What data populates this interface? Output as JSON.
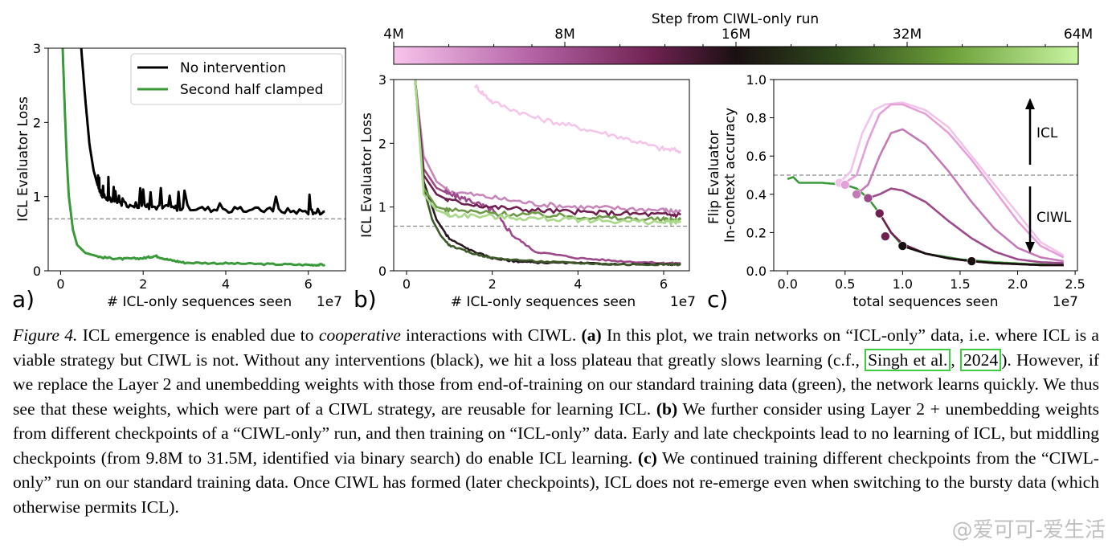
{
  "colorbar": {
    "title": "Step from CIWL-only run",
    "ticks": [
      "4M",
      "8M",
      "16M",
      "32M",
      "64M"
    ],
    "colors": [
      "#f7c4ec",
      "#b564a6",
      "#6e2150",
      "#1a1012",
      "#2f4a1c",
      "#6fa23c",
      "#c8f5a2"
    ]
  },
  "chart_data": [
    {
      "panel_label": "a)",
      "type": "line",
      "xlabel": "# ICL-only sequences seen",
      "x_exponent": "1e7",
      "ylabel": "ICL Evaluator Loss",
      "xlim": [
        -0.3,
        6.9
      ],
      "ylim": [
        0,
        3
      ],
      "xticks": [
        "0",
        "2",
        "4",
        "6"
      ],
      "yticks": [
        "0",
        "1",
        "2",
        "3"
      ],
      "hline": 0.7,
      "legend_position": "upper-right",
      "series": [
        {
          "name": "No intervention",
          "color": "#000000",
          "x": [
            0.5,
            0.6,
            0.7,
            0.8,
            0.9,
            1.0,
            1.2,
            1.5,
            2.0,
            2.5,
            3.0,
            4.0,
            5.0,
            6.0,
            6.4
          ],
          "y": [
            3.0,
            2.3,
            1.7,
            1.35,
            1.15,
            1.02,
            0.95,
            0.9,
            0.88,
            0.85,
            0.85,
            0.82,
            0.82,
            0.8,
            0.8
          ]
        },
        {
          "name": "Second half clamped",
          "color": "#3a9a3a",
          "x": [
            0.05,
            0.1,
            0.15,
            0.2,
            0.3,
            0.4,
            0.6,
            1.0,
            1.5,
            2.0,
            2.3,
            2.6,
            3.0,
            4.0,
            5.0,
            6.0,
            6.4
          ],
          "y": [
            3.0,
            2.2,
            1.5,
            1.0,
            0.55,
            0.35,
            0.24,
            0.18,
            0.16,
            0.17,
            0.2,
            0.15,
            0.11,
            0.1,
            0.09,
            0.08,
            0.08
          ]
        }
      ]
    },
    {
      "panel_label": "b)",
      "type": "line",
      "xlabel": "# ICL-only sequences seen",
      "x_exponent": "1e7",
      "ylabel": "ICL Evaluator Loss",
      "xlim": [
        -0.3,
        6.6
      ],
      "ylim": [
        0,
        3
      ],
      "xticks": [
        "0",
        "2",
        "4",
        "6"
      ],
      "yticks": [
        "0",
        "1",
        "2",
        "3"
      ],
      "hline": 0.7,
      "series": [
        {
          "color": "#f4c6ea",
          "x": [
            1.6,
            2.0,
            3.0,
            4.0,
            5.0,
            5.9,
            6.4
          ],
          "y": [
            2.9,
            2.65,
            2.4,
            2.25,
            2.1,
            1.92,
            1.88
          ]
        },
        {
          "color": "#c686ba",
          "x": [
            0.2,
            0.4,
            0.7,
            1.0,
            2.0,
            3.0,
            4.0,
            5.0,
            6.0,
            6.4
          ],
          "y": [
            3.0,
            1.8,
            1.4,
            1.25,
            1.15,
            1.05,
            1.0,
            0.98,
            0.95,
            0.93
          ]
        },
        {
          "color": "#9c4a8a",
          "x": [
            0.2,
            0.4,
            0.7,
            1.0,
            1.5,
            2.0,
            2.5,
            3.0,
            4.0,
            5.0,
            6.0,
            6.4
          ],
          "y": [
            3.0,
            1.6,
            1.3,
            1.2,
            1.1,
            0.95,
            0.55,
            0.3,
            0.2,
            0.15,
            0.12,
            0.12
          ]
        },
        {
          "color": "#6e2150",
          "x": [
            0.2,
            0.4,
            0.7,
            1.0,
            2.0,
            3.0,
            4.0,
            5.0,
            6.0,
            6.4
          ],
          "y": [
            3.0,
            1.5,
            1.2,
            1.1,
            1.0,
            0.95,
            0.92,
            0.9,
            0.88,
            0.88
          ]
        },
        {
          "color": "#2a1a22",
          "x": [
            0.2,
            0.4,
            0.7,
            1.0,
            1.5,
            2.0,
            2.5,
            3.0,
            4.0,
            5.0,
            6.0,
            6.4
          ],
          "y": [
            3.0,
            1.4,
            0.8,
            0.5,
            0.32,
            0.2,
            0.15,
            0.13,
            0.12,
            0.1,
            0.1,
            0.1
          ]
        },
        {
          "color": "#3e5a2a",
          "x": [
            0.2,
            0.4,
            0.6,
            0.8,
            1.0,
            1.5,
            2.0,
            3.0,
            4.0,
            5.0,
            6.0,
            6.4
          ],
          "y": [
            3.0,
            1.3,
            0.8,
            0.55,
            0.4,
            0.28,
            0.2,
            0.15,
            0.12,
            0.1,
            0.1,
            0.1
          ]
        },
        {
          "color": "#6e9a4a",
          "x": [
            0.2,
            0.4,
            0.7,
            1.0,
            2.0,
            3.0,
            4.0,
            5.0,
            6.0,
            6.4
          ],
          "y": [
            3.0,
            1.3,
            1.0,
            0.95,
            0.9,
            0.88,
            0.85,
            0.82,
            0.8,
            0.8
          ]
        },
        {
          "color": "#a8d888",
          "x": [
            0.2,
            0.4,
            0.7,
            1.0,
            2.0,
            3.0,
            4.0,
            5.0,
            6.0,
            6.4
          ],
          "y": [
            3.0,
            1.2,
            0.95,
            0.88,
            0.85,
            0.82,
            0.8,
            0.78,
            0.76,
            0.76
          ]
        }
      ]
    },
    {
      "panel_label": "c)",
      "type": "line",
      "xlabel": "total sequences seen",
      "x_exponent": "1e7",
      "ylabel": "Flip Evaluator In-context accuracy",
      "xlim": [
        -0.12,
        2.52
      ],
      "ylim": [
        0,
        1
      ],
      "xticks": [
        "0.0",
        "0.5",
        "1.0",
        "1.5",
        "2.0",
        "2.5"
      ],
      "yticks": [
        "0.0",
        "0.2",
        "0.4",
        "0.6",
        "0.8",
        "1.0"
      ],
      "hline": 0.5,
      "annotations": [
        "ICL",
        "CIWL"
      ],
      "series": [
        {
          "color": "#3a9a3a",
          "x": [
            0.0,
            0.05,
            0.1,
            0.3,
            0.5,
            0.6,
            0.7,
            0.8,
            0.9,
            1.0,
            1.2,
            1.5,
            1.8,
            2.1,
            2.4
          ],
          "y": [
            0.48,
            0.49,
            0.46,
            0.46,
            0.45,
            0.43,
            0.38,
            0.3,
            0.2,
            0.13,
            0.09,
            0.06,
            0.045,
            0.035,
            0.03
          ]
        },
        {
          "color": "#f3c4ea",
          "x": [
            0.45,
            0.55,
            0.65,
            0.75,
            0.85,
            1.0,
            1.2,
            1.4,
            1.6,
            1.8,
            2.0,
            2.2,
            2.4
          ],
          "y": [
            0.46,
            0.52,
            0.72,
            0.84,
            0.87,
            0.88,
            0.84,
            0.75,
            0.6,
            0.45,
            0.3,
            0.15,
            0.08
          ]
        },
        {
          "color": "#e6a0d8",
          "x": [
            0.5,
            0.6,
            0.7,
            0.8,
            0.9,
            1.0,
            1.2,
            1.4,
            1.6,
            1.8,
            2.0,
            2.2,
            2.4
          ],
          "y": [
            0.46,
            0.5,
            0.68,
            0.82,
            0.87,
            0.87,
            0.82,
            0.72,
            0.58,
            0.42,
            0.26,
            0.13,
            0.07
          ]
        },
        {
          "color": "#c47ab6",
          "x": [
            0.6,
            0.7,
            0.8,
            0.9,
            1.0,
            1.2,
            1.4,
            1.6,
            1.8,
            2.0,
            2.2,
            2.4
          ],
          "y": [
            0.4,
            0.45,
            0.6,
            0.72,
            0.74,
            0.66,
            0.52,
            0.36,
            0.22,
            0.12,
            0.07,
            0.05
          ]
        },
        {
          "color": "#9c4a8a",
          "x": [
            0.7,
            0.8,
            0.9,
            1.0,
            1.2,
            1.4,
            1.6,
            1.8,
            2.0,
            2.2,
            2.4
          ],
          "y": [
            0.38,
            0.4,
            0.43,
            0.42,
            0.36,
            0.26,
            0.17,
            0.1,
            0.06,
            0.045,
            0.04
          ]
        },
        {
          "color": "#6e2150",
          "x": [
            0.8,
            0.9,
            1.0,
            1.2,
            1.4,
            1.6,
            1.8,
            2.0,
            2.2,
            2.4
          ],
          "y": [
            0.3,
            0.2,
            0.14,
            0.09,
            0.065,
            0.05,
            0.04,
            0.035,
            0.03,
            0.03
          ]
        },
        {
          "color": "#1a1012",
          "x": [
            1.0,
            1.2,
            1.4,
            1.6,
            1.8,
            2.0,
            2.2,
            2.4
          ],
          "y": [
            0.13,
            0.09,
            0.065,
            0.05,
            0.04,
            0.035,
            0.03,
            0.03
          ]
        }
      ],
      "markers": [
        {
          "color": "#f3c4ea",
          "x": 0.45,
          "y": 0.46
        },
        {
          "color": "#e6a0d8",
          "x": 0.5,
          "y": 0.45
        },
        {
          "color": "#c47ab6",
          "x": 0.6,
          "y": 0.4
        },
        {
          "color": "#9c4a8a",
          "x": 0.7,
          "y": 0.38
        },
        {
          "color": "#6e2150",
          "x": 0.8,
          "y": 0.3
        },
        {
          "color": "#6e2150",
          "x": 0.85,
          "y": 0.18
        },
        {
          "color": "#1a1012",
          "x": 1.0,
          "y": 0.13
        },
        {
          "color": "#1a1012",
          "x": 1.6,
          "y": 0.05
        }
      ]
    }
  ],
  "caption": {
    "fig_label": "Figure 4.",
    "t1": " ICL emergence is enabled due to ",
    "t1_it": "cooperative",
    "t2": " interactions with CIWL. ",
    "a_label": "(a)",
    "t3": " In this plot, we train networks on “ICL-only” data, i.e. where ICL is a viable strategy but CIWL is not. Without any interventions (black), we hit a loss plateau that greatly slows learning (c.f., ",
    "cite_author": "Singh et al.",
    "cite_year": "2024",
    "t4": "). However, if we replace the Layer 2 and unembedding weights with those from end-of-training on our standard training data (green), the network learns quickly. We thus see that these weights, which were part of a CIWL strategy, are reusable for learning ICL. ",
    "b_label": "(b)",
    "t5": " We further consider using Layer 2 + unembedding weights from different checkpoints of a “CIWL-only” run, and then training on “ICL-only” data. Early and late checkpoints lead to no learning of ICL, but middling checkpoints (from 9.8M to 31.5M, identified via binary search) do enable ICL learning. ",
    "c_label": "(c)",
    "t6": " We continued training different checkpoints from the “CIWL-only” run on our standard training data. Once CIWL has formed (later checkpoints), ICL does not re-emerge even when switching to the bursty data (which otherwise permits ICL)."
  },
  "watermark": "@爱可可-爱生活"
}
